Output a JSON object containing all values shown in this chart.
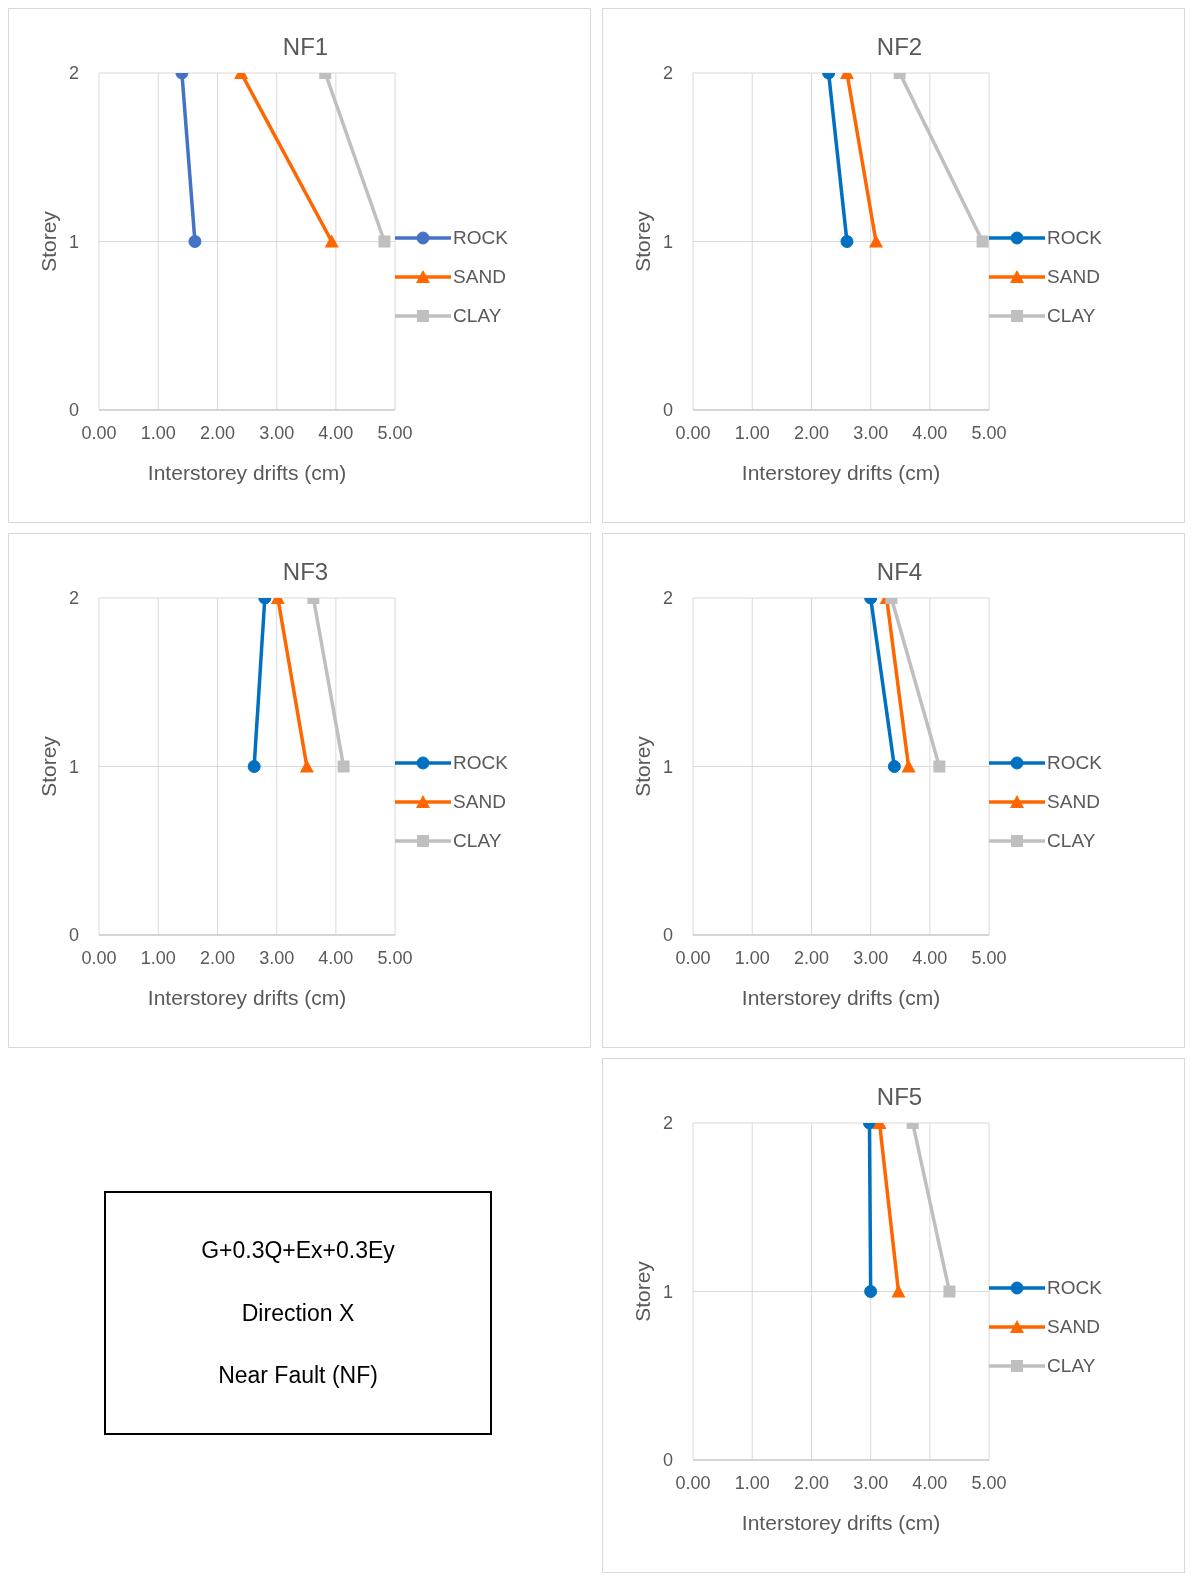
{
  "chart_data": [
    {
      "type": "line",
      "title": "NF1",
      "xlabel": "Interstorey drifts (cm)",
      "ylabel": "Storey",
      "xlim": [
        0,
        5
      ],
      "xticks": [
        {
          "value": 0,
          "label": "0.00"
        },
        {
          "value": 1,
          "label": "1.00"
        },
        {
          "value": 2,
          "label": "2.00"
        },
        {
          "value": 3,
          "label": "3.00"
        },
        {
          "value": 4,
          "label": "4.00"
        },
        {
          "value": 5,
          "label": "5.00"
        }
      ],
      "ylim": [
        0,
        2
      ],
      "yticks": [
        0,
        1,
        2
      ],
      "grid": true,
      "legend": "right",
      "line_style": "solid",
      "series": [
        {
          "name": "ROCK",
          "color": "#4472c4",
          "marker": "circle",
          "x": [
            1.62,
            1.4
          ],
          "values": [
            1,
            2
          ]
        },
        {
          "name": "SAND",
          "color": "#ff6600",
          "marker": "triangle",
          "x": [
            3.93,
            2.4
          ],
          "values": [
            1,
            2
          ]
        },
        {
          "name": "CLAY",
          "color": "#bfbfbf",
          "marker": "square",
          "x": [
            4.82,
            3.82
          ],
          "values": [
            1,
            2
          ]
        }
      ]
    },
    {
      "type": "line",
      "title": "NF2",
      "xlabel": "Interstorey drifts (cm)",
      "ylabel": "Storey",
      "xlim": [
        0,
        5
      ],
      "xticks": [
        {
          "value": 0,
          "label": "0.00"
        },
        {
          "value": 1,
          "label": "1.00"
        },
        {
          "value": 2,
          "label": "2.00"
        },
        {
          "value": 3,
          "label": "3.00"
        },
        {
          "value": 4,
          "label": "4.00"
        },
        {
          "value": 5,
          "label": "5.00"
        }
      ],
      "ylim": [
        0,
        2
      ],
      "yticks": [
        0,
        1,
        2
      ],
      "grid": true,
      "legend": "right",
      "line_style": "solid",
      "series": [
        {
          "name": "ROCK",
          "color": "#0070c0",
          "marker": "circle",
          "x": [
            2.6,
            2.29
          ],
          "values": [
            1,
            2
          ]
        },
        {
          "name": "SAND",
          "color": "#ff6600",
          "marker": "triangle",
          "x": [
            3.09,
            2.6
          ],
          "values": [
            1,
            2
          ]
        },
        {
          "name": "CLAY",
          "color": "#bfbfbf",
          "marker": "square",
          "x": [
            4.89,
            3.49
          ],
          "values": [
            1,
            2
          ]
        }
      ]
    },
    {
      "type": "line",
      "title": "NF3",
      "xlabel": "Interstorey drifts (cm)",
      "ylabel": "Storey",
      "xlim": [
        0,
        5
      ],
      "xticks": [
        {
          "value": 0,
          "label": "0.00"
        },
        {
          "value": 1,
          "label": "1.00"
        },
        {
          "value": 2,
          "label": "2.00"
        },
        {
          "value": 3,
          "label": "3.00"
        },
        {
          "value": 4,
          "label": "4.00"
        },
        {
          "value": 5,
          "label": "5.00"
        }
      ],
      "ylim": [
        0,
        2
      ],
      "yticks": [
        0,
        1,
        2
      ],
      "grid": true,
      "legend": "right",
      "line_style": "solid",
      "series": [
        {
          "name": "ROCK",
          "color": "#0070c0",
          "marker": "circle",
          "x": [
            2.62,
            2.8
          ],
          "values": [
            1,
            2
          ]
        },
        {
          "name": "SAND",
          "color": "#ff6600",
          "marker": "triangle",
          "x": [
            3.51,
            3.02
          ],
          "values": [
            1,
            2
          ]
        },
        {
          "name": "CLAY",
          "color": "#bfbfbf",
          "marker": "square",
          "x": [
            4.13,
            3.62
          ],
          "values": [
            1,
            2
          ]
        }
      ]
    },
    {
      "type": "line",
      "title": "NF4",
      "xlabel": "Interstorey drifts (cm)",
      "ylabel": "Storey",
      "xlim": [
        0,
        5
      ],
      "xticks": [
        {
          "value": 0,
          "label": "0.00"
        },
        {
          "value": 1,
          "label": "1.00"
        },
        {
          "value": 2,
          "label": "2.00"
        },
        {
          "value": 3,
          "label": "3.00"
        },
        {
          "value": 4,
          "label": "4.00"
        },
        {
          "value": 5,
          "label": "5.00"
        }
      ],
      "ylim": [
        0,
        2
      ],
      "yticks": [
        0,
        1,
        2
      ],
      "grid": true,
      "legend": "right",
      "line_style": "solid",
      "series": [
        {
          "name": "ROCK",
          "color": "#0070c0",
          "marker": "circle",
          "x": [
            3.4,
            3.0
          ],
          "values": [
            1,
            2
          ]
        },
        {
          "name": "SAND",
          "color": "#ff6600",
          "marker": "triangle",
          "x": [
            3.64,
            3.27
          ],
          "values": [
            1,
            2
          ]
        },
        {
          "name": "CLAY",
          "color": "#bfbfbf",
          "marker": "square",
          "x": [
            4.16,
            3.35
          ],
          "values": [
            1,
            2
          ]
        }
      ]
    },
    {
      "type": "other",
      "annotations": [
        "G+0.3Q+Ex+0.3Ey",
        "Direction X",
        "Near Fault (NF)"
      ]
    },
    {
      "type": "line",
      "title": "NF5",
      "xlabel": "Interstorey drifts (cm)",
      "ylabel": "Storey",
      "xlim": [
        0,
        5
      ],
      "xticks": [
        {
          "value": 0,
          "label": "0.00"
        },
        {
          "value": 1,
          "label": "1.00"
        },
        {
          "value": 2,
          "label": "2.00"
        },
        {
          "value": 3,
          "label": "3.00"
        },
        {
          "value": 4,
          "label": "4.00"
        },
        {
          "value": 5,
          "label": "5.00"
        }
      ],
      "ylim": [
        0,
        2
      ],
      "yticks": [
        0,
        1,
        2
      ],
      "grid": true,
      "legend": "right",
      "line_style": "solid",
      "series": [
        {
          "name": "ROCK",
          "color": "#0070c0",
          "marker": "circle",
          "x": [
            3.0,
            2.98
          ],
          "values": [
            1,
            2
          ]
        },
        {
          "name": "SAND",
          "color": "#ff6600",
          "marker": "triangle",
          "x": [
            3.47,
            3.15
          ],
          "values": [
            1,
            2
          ]
        },
        {
          "name": "CLAY",
          "color": "#bfbfbf",
          "marker": "square",
          "x": [
            4.33,
            3.71
          ],
          "values": [
            1,
            2
          ]
        }
      ]
    }
  ]
}
